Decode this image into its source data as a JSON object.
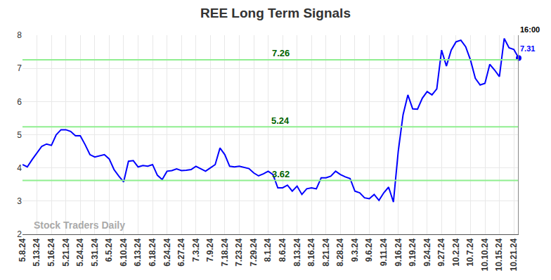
{
  "chart_data": {
    "type": "line",
    "title": "REE Long Term Signals",
    "categories": [
      "5.8.24",
      null,
      null,
      "5.13.24",
      null,
      null,
      "5.16.24",
      null,
      null,
      "5.21.24",
      null,
      null,
      "5.24.24",
      null,
      null,
      "5.31.24",
      null,
      null,
      "6.5.24",
      null,
      null,
      "6.10.24",
      null,
      null,
      "6.13.24",
      null,
      null,
      "6.18.24",
      null,
      null,
      "6.24.24",
      null,
      null,
      "6.27.24",
      null,
      null,
      "7.3.24",
      null,
      null,
      "7.9.24",
      null,
      null,
      "7.18.24",
      null,
      null,
      "7.23.24",
      null,
      null,
      "7.29.24",
      null,
      null,
      "8.1.24",
      null,
      null,
      "8.6.24",
      null,
      null,
      "8.13.24",
      null,
      null,
      "8.16.24",
      null,
      null,
      "8.21.24",
      null,
      null,
      "8.28.24",
      null,
      null,
      "9.3.24",
      null,
      null,
      "9.6.24",
      null,
      null,
      "9.11.24",
      null,
      null,
      "9.16.24",
      null,
      null,
      "9.19.24",
      null,
      null,
      "9.24.24",
      null,
      null,
      "9.27.24",
      null,
      null,
      "10.2.24",
      null,
      null,
      "10.7.24",
      null,
      null,
      "10.10.24",
      null,
      null,
      "10.15.24",
      null,
      null,
      "10.21.24",
      null
    ],
    "series": [
      {
        "color": "#0000ff",
        "values": [
          4.1,
          4.03,
          4.25,
          4.45,
          4.65,
          4.72,
          4.68,
          5.0,
          5.15,
          5.15,
          5.1,
          4.97,
          4.97,
          4.7,
          4.4,
          4.33,
          4.37,
          4.4,
          4.27,
          3.95,
          3.75,
          3.58,
          4.2,
          4.22,
          4.03,
          4.07,
          4.05,
          4.1,
          3.78,
          3.65,
          3.9,
          3.92,
          3.97,
          3.92,
          3.93,
          3.95,
          4.05,
          3.97,
          3.9,
          4.0,
          4.1,
          4.6,
          4.4,
          4.05,
          4.03,
          4.05,
          4.02,
          3.98,
          3.85,
          3.76,
          3.82,
          3.9,
          3.8,
          3.4,
          3.4,
          3.48,
          3.3,
          3.45,
          3.2,
          3.37,
          3.4,
          3.37,
          3.7,
          3.7,
          3.75,
          3.9,
          3.8,
          3.73,
          3.68,
          3.3,
          3.25,
          3.1,
          3.07,
          3.2,
          3.02,
          3.25,
          3.42,
          2.97,
          4.5,
          5.6,
          6.2,
          5.78,
          5.77,
          6.1,
          6.3,
          6.2,
          6.38,
          7.55,
          7.07,
          7.55,
          7.8,
          7.85,
          7.65,
          7.25,
          6.7,
          6.5,
          6.55,
          7.12,
          6.95,
          6.75,
          7.9,
          7.62,
          7.57,
          7.31
        ]
      }
    ],
    "reference_lines": [
      {
        "value": 7.26,
        "label": "7.26",
        "color": "#90ee90"
      },
      {
        "value": 5.24,
        "label": "5.24",
        "color": "#90ee90"
      },
      {
        "value": 3.62,
        "label": "3.62",
        "color": "#90ee90"
      }
    ],
    "end_label": {
      "time": "16:00",
      "value": 7.31,
      "label": "7.31"
    },
    "watermark": "Stock Traders Daily",
    "ylim": [
      2,
      8
    ],
    "yticks": [
      2,
      3,
      4,
      5,
      6,
      7,
      8
    ],
    "grid": true
  }
}
